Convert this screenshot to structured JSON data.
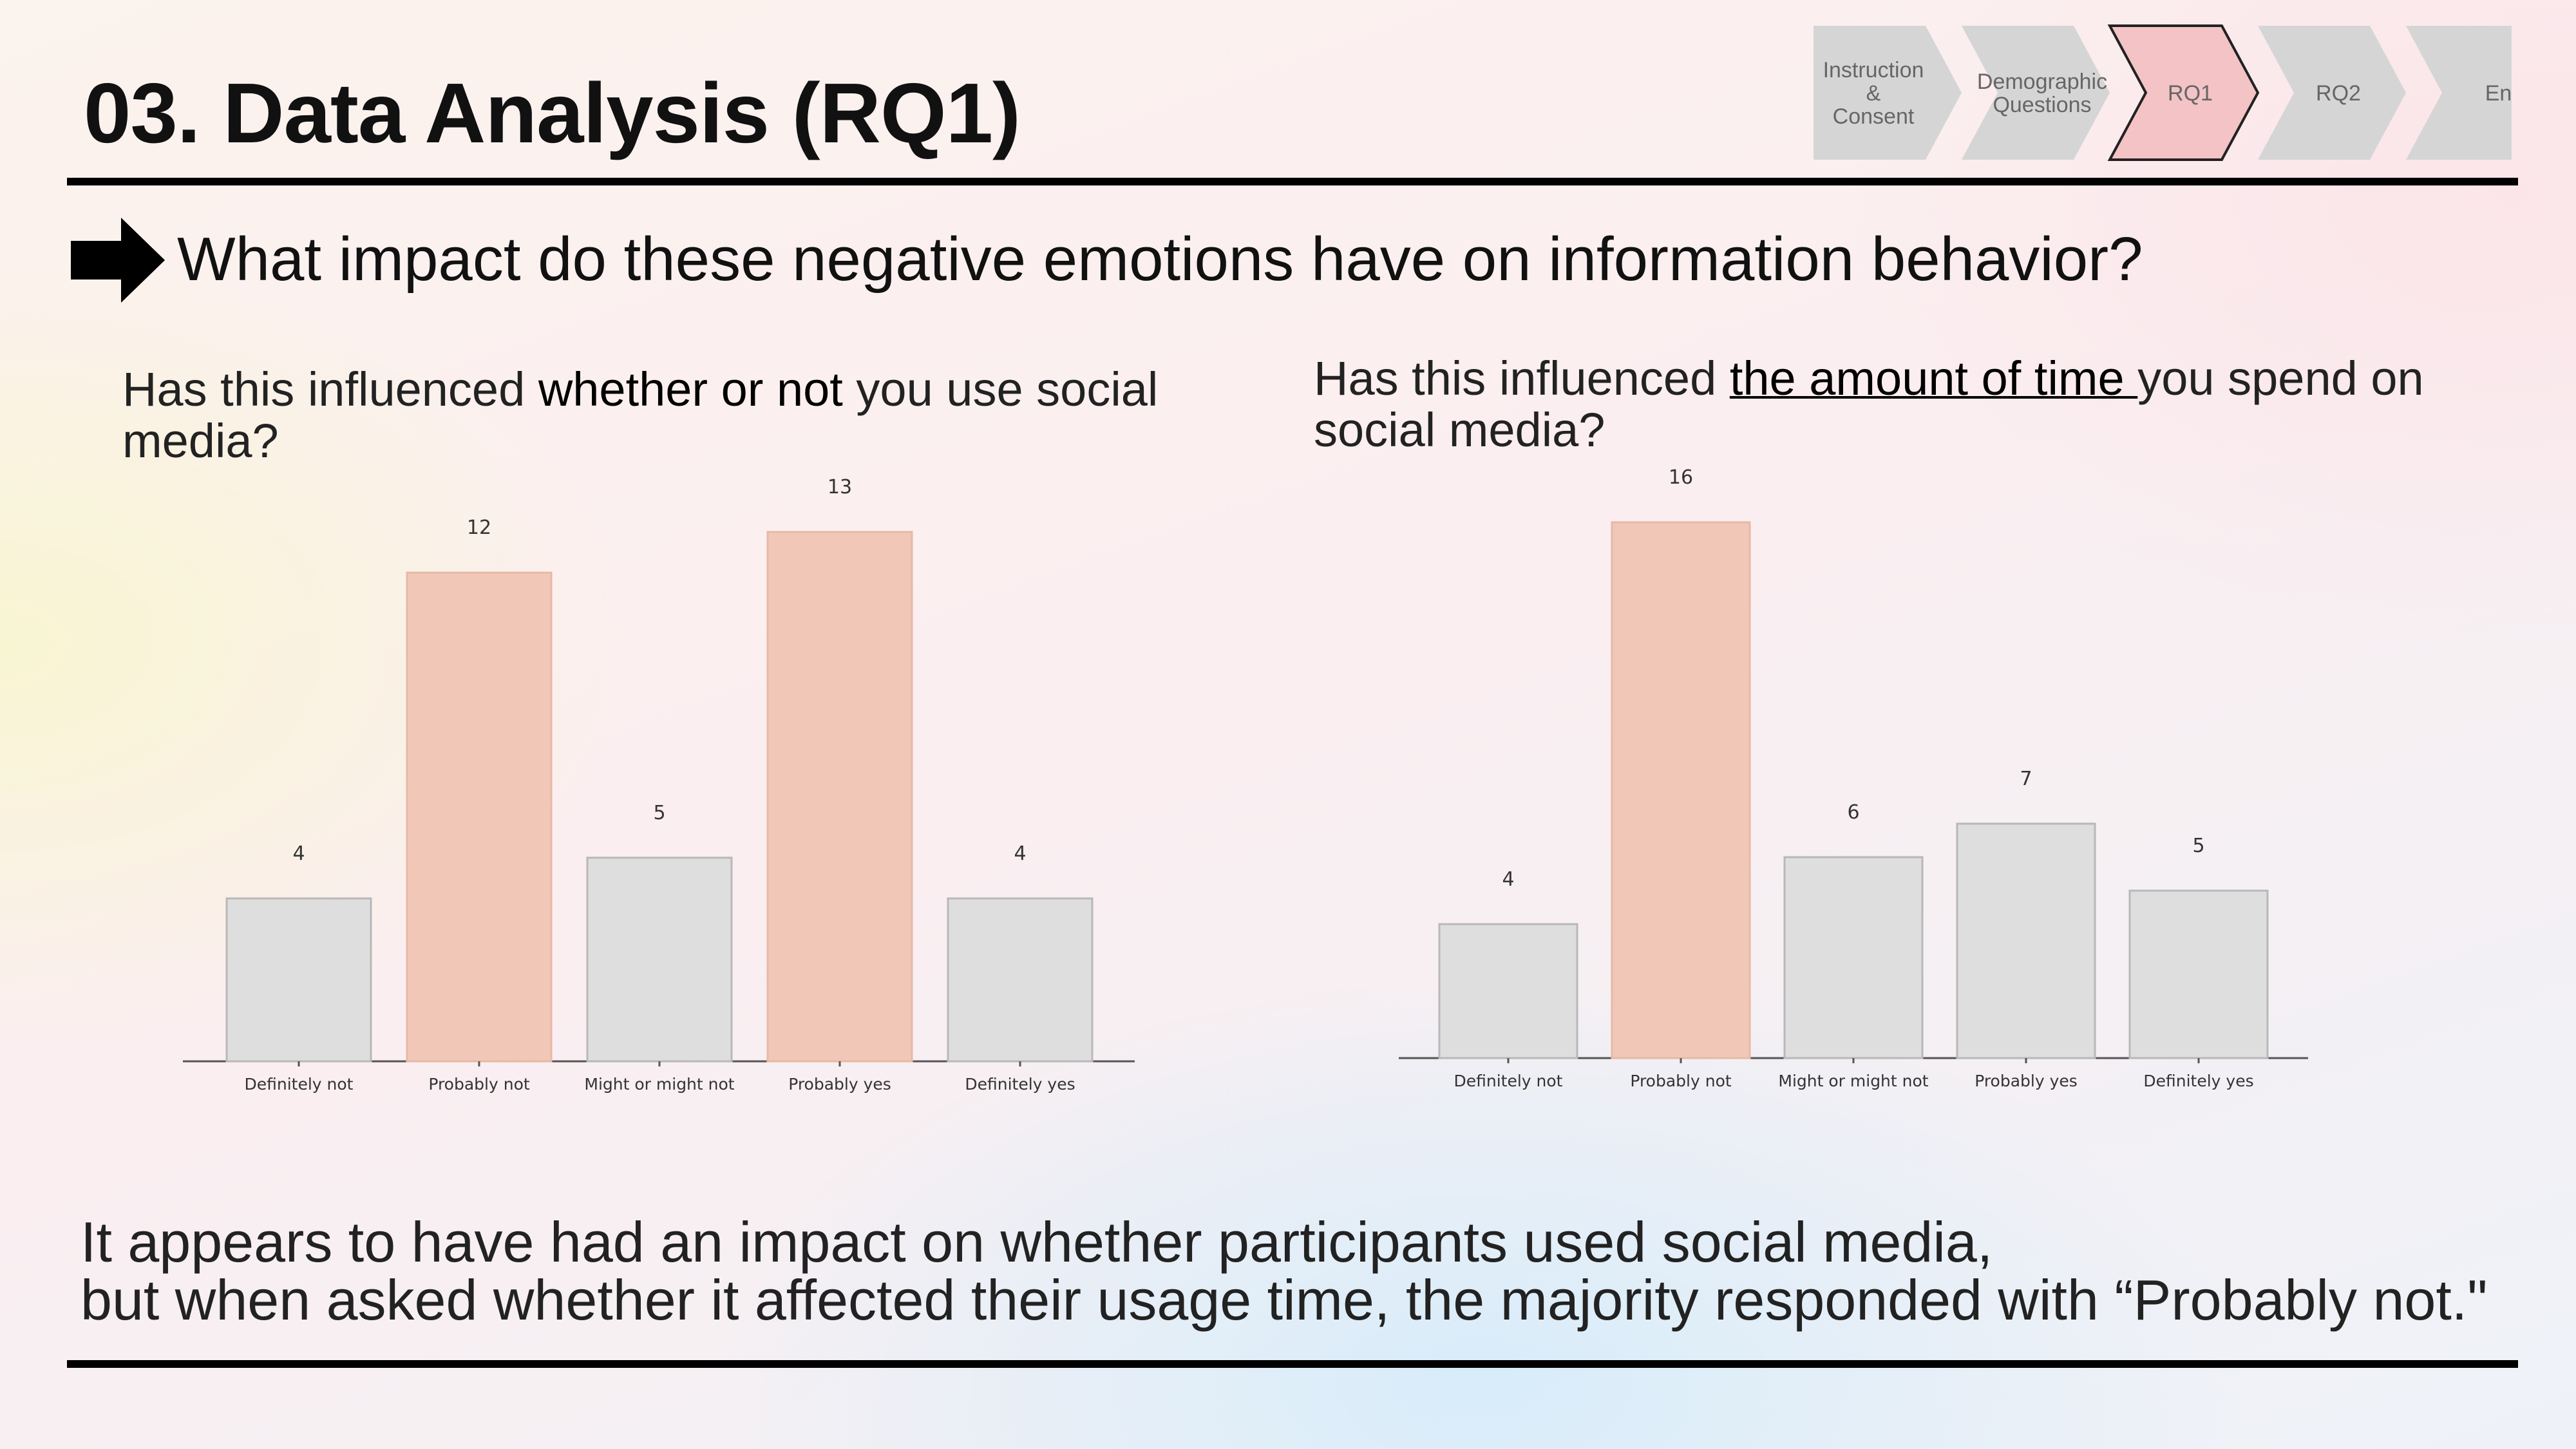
{
  "title": "03. Data Analysis (RQ1)",
  "progress_steps": [
    {
      "label_lines": [
        "Instruction",
        "&",
        "Consent"
      ],
      "active": false
    },
    {
      "label_lines": [
        "Demographic",
        "Questions"
      ],
      "active": false
    },
    {
      "label_lines": [
        "RQ1"
      ],
      "active": true
    },
    {
      "label_lines": [
        "RQ2"
      ],
      "active": false
    },
    {
      "label_lines": [
        "End"
      ],
      "active": false
    }
  ],
  "colors": {
    "step_inactive": "#d5d5d5",
    "step_active": "#f3c3c6",
    "bar_highlight": "#f1c8b8",
    "bar_default": "#dedede",
    "bar_stroke": "#b8b8b8"
  },
  "subtitle": "What impact do these negative emotions have on information behavior?",
  "questions": {
    "q1": {
      "before": "Has this influenced ",
      "emphasis": "whether or not",
      "after": " you use social media?"
    },
    "q2": {
      "before": "Has this influenced ",
      "emphasis": "the amount of time ",
      "after": "you spend on social media?"
    }
  },
  "chart_data": [
    {
      "type": "bar",
      "categories": [
        "Definitely not",
        "Probably not",
        "Might or might not",
        "Probably yes",
        "Definitely yes"
      ],
      "values": [
        4,
        12,
        5,
        13,
        4
      ],
      "highlighted": [
        false,
        true,
        false,
        true,
        false
      ],
      "data_labels": true,
      "ylim": [
        0,
        13
      ],
      "grid": false
    },
    {
      "type": "bar",
      "categories": [
        "Definitely not",
        "Probably not",
        "Might or might not",
        "Probably yes",
        "Definitely yes"
      ],
      "values": [
        4,
        16,
        6,
        7,
        5
      ],
      "highlighted": [
        false,
        true,
        false,
        false,
        false
      ],
      "data_labels": true,
      "ylim": [
        0,
        16
      ],
      "grid": false
    }
  ],
  "conclusion": {
    "line1": "It appears to have had an impact on whether participants used social media,",
    "line2": "but when asked whether it affected their usage time, the majority responded with “Probably not.\""
  }
}
